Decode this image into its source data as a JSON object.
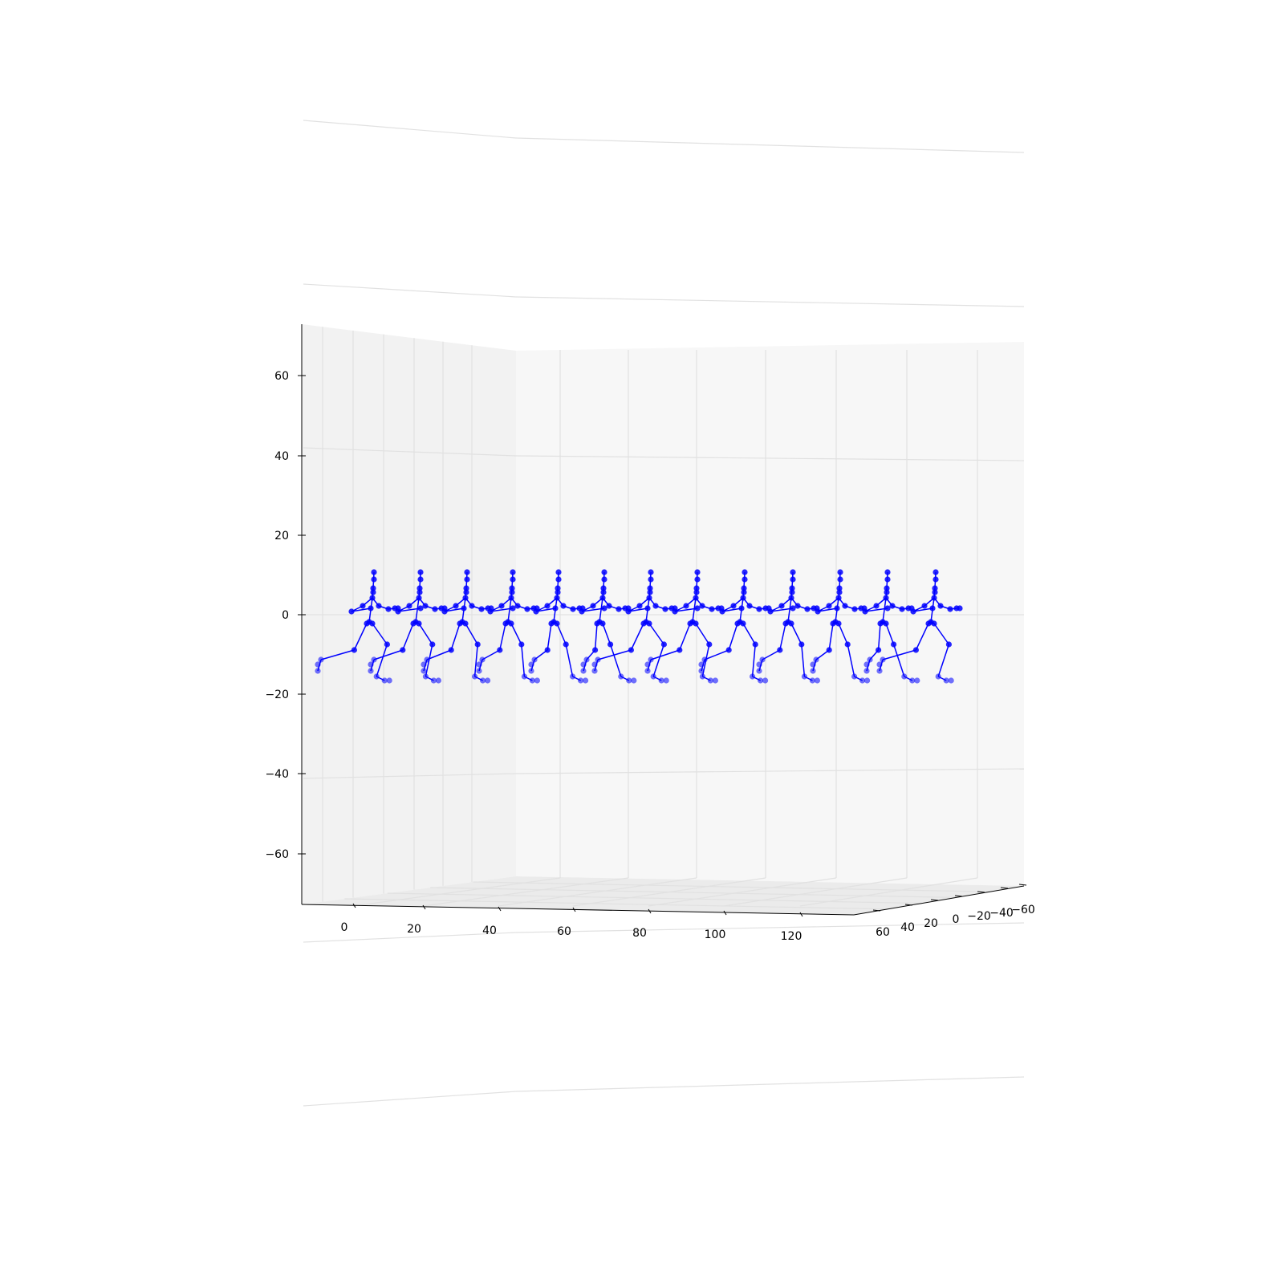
{
  "chart_data": {
    "type": "scatter",
    "title": "",
    "projection": "3d",
    "grid": true,
    "pane_colors": [
      "#f2f2f2",
      "#f7f7f7",
      "#ebebeb"
    ],
    "axes": {
      "x": {
        "label": "",
        "ticks": [
          0,
          20,
          40,
          60,
          80,
          100,
          120
        ],
        "tick_labels": [
          "0",
          "20",
          "40",
          "60",
          "80",
          "100",
          "120"
        ]
      },
      "y": {
        "label": "",
        "ticks": [
          60,
          40,
          20,
          0,
          -20,
          -40,
          -60
        ],
        "tick_labels": [
          "60",
          "40",
          "20",
          "0",
          "−20",
          "−40",
          "−60"
        ]
      },
      "z": {
        "label": "",
        "ticks": [
          60,
          40,
          20,
          0,
          -20,
          -40,
          -60
        ],
        "tick_labels": [
          "60",
          "40",
          "20",
          "0",
          "−20",
          "−40",
          "−60"
        ],
        "ylim": [
          -72,
          72
        ]
      }
    },
    "series": [
      {
        "marker_color": "#0000ff",
        "line_color": "#0000ff",
        "frame_count": 13,
        "description": "walking skeleton sequence, one skeleton per frame",
        "frame_x": [
          10.5,
          22.5,
          35,
          48,
          60,
          72,
          84.5,
          97,
          110,
          123,
          136,
          148.5,
          161
        ]
      }
    ]
  }
}
